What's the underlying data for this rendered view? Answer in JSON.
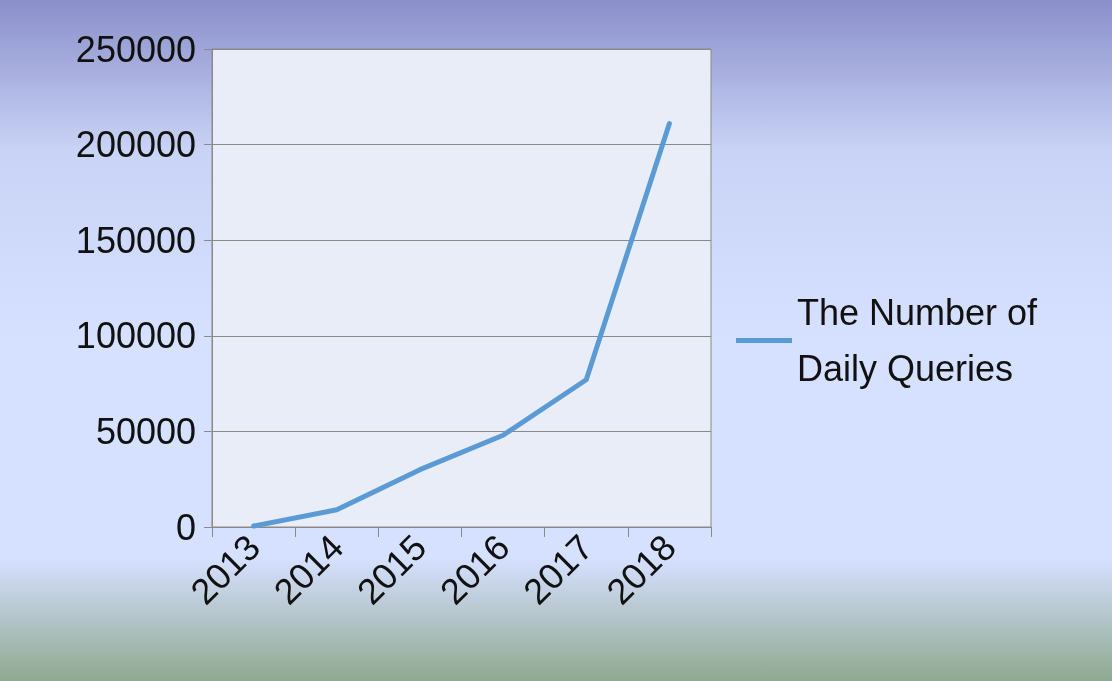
{
  "chart_data": {
    "type": "line",
    "categories": [
      "2013",
      "2014",
      "2015",
      "2016",
      "2017",
      "2018"
    ],
    "series": [
      {
        "name": "The Number of Daily Queries",
        "color": "#5b9bd5",
        "values": [
          500,
          9000,
          30000,
          48000,
          77000,
          211000
        ]
      }
    ],
    "ylim": [
      0,
      250000
    ],
    "yticks": [
      0,
      50000,
      100000,
      150000,
      200000,
      250000
    ],
    "grid": "y",
    "legend": "right",
    "marker": "none"
  }
}
